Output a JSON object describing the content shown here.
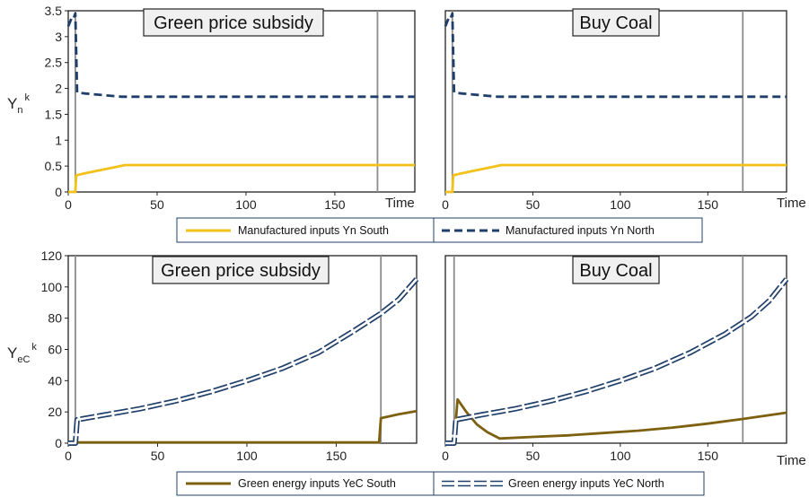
{
  "colors": {
    "south_manufactured": "#f2c21b",
    "north_manufactured": "#1f3f6a",
    "south_energy": "#7d6010",
    "north_energy": "#1f3f6a",
    "policy_line": "#8c8c8c",
    "legend_border": "#1f3f6a"
  },
  "top_row": {
    "y_label_main": "Y",
    "y_label_sub": "n",
    "y_label_sup": "k",
    "legend": {
      "south": "Manufactured inputs Yn South",
      "north": "Manufactured inputs Yn North"
    }
  },
  "bottom_row": {
    "y_label_main": "Y",
    "y_label_sub": "eC",
    "y_label_sup": "k",
    "legend": {
      "south": "Green energy inputs YeC South",
      "north": "Green energy inputs YeC North"
    }
  },
  "chart_data": [
    {
      "type": "line",
      "title": "Green price subsidy",
      "xlabel": "Time",
      "ylabel": "Yn k",
      "xlim": [
        0,
        195
      ],
      "ylim": [
        0,
        3.5
      ],
      "x_ticks": [
        "0",
        "50",
        "100",
        "150"
      ],
      "x_tick_values": [
        0,
        50,
        100,
        150
      ],
      "y_ticks": [
        "0",
        "0.5",
        "1",
        "1.5",
        "2",
        "2.5",
        "3",
        "3.5"
      ],
      "y_tick_values": [
        0,
        0.5,
        1,
        1.5,
        2,
        2.5,
        3,
        3.5
      ],
      "show_y_ticks": true,
      "vlines": [
        4,
        174
      ],
      "series": [
        {
          "name": "Manufactured inputs Yn South",
          "style": "solid",
          "color_key": "south_manufactured",
          "points": [
            [
              0,
              0
            ],
            [
              4,
              0
            ],
            [
              4.5,
              0.32
            ],
            [
              8,
              0.35
            ],
            [
              15,
              0.4
            ],
            [
              25,
              0.47
            ],
            [
              32,
              0.52
            ],
            [
              195,
              0.52
            ]
          ]
        },
        {
          "name": "Manufactured inputs Yn North",
          "style": "dashed",
          "color_key": "north_manufactured",
          "points": [
            [
              0,
              3.2
            ],
            [
              2,
              3.37
            ],
            [
              3,
              3.35
            ],
            [
              4,
              3.45
            ],
            [
              5,
              1.92
            ],
            [
              10,
              1.9
            ],
            [
              20,
              1.87
            ],
            [
              30,
              1.84
            ],
            [
              195,
              1.84
            ]
          ]
        }
      ]
    },
    {
      "type": "line",
      "title": "Buy Coal",
      "xlabel": "Time",
      "ylabel": "",
      "xlim": [
        0,
        195
      ],
      "ylim": [
        0,
        3.5
      ],
      "x_ticks": [
        "0",
        "50",
        "100",
        "150"
      ],
      "x_tick_values": [
        0,
        50,
        100,
        150
      ],
      "y_ticks": [],
      "y_tick_values": [],
      "show_y_ticks": false,
      "vlines": [
        4,
        170
      ],
      "series": [
        {
          "name": "Manufactured inputs Yn South",
          "style": "solid",
          "color_key": "south_manufactured",
          "points": [
            [
              0,
              0
            ],
            [
              4,
              0
            ],
            [
              4.5,
              0.32
            ],
            [
              8,
              0.35
            ],
            [
              15,
              0.4
            ],
            [
              25,
              0.47
            ],
            [
              32,
              0.52
            ],
            [
              195,
              0.52
            ]
          ]
        },
        {
          "name": "Manufactured inputs Yn North",
          "style": "dashed",
          "color_key": "north_manufactured",
          "points": [
            [
              0,
              3.2
            ],
            [
              2,
              3.37
            ],
            [
              3,
              3.35
            ],
            [
              4,
              3.45
            ],
            [
              5,
              1.92
            ],
            [
              10,
              1.9
            ],
            [
              20,
              1.87
            ],
            [
              30,
              1.84
            ],
            [
              195,
              1.84
            ]
          ]
        }
      ]
    },
    {
      "type": "line",
      "title": "Green price subsidy",
      "xlabel": "",
      "ylabel": "YeC k",
      "xlim": [
        0,
        195
      ],
      "ylim": [
        0,
        120
      ],
      "x_ticks": [
        "0",
        "50",
        "100",
        "150"
      ],
      "x_tick_values": [
        0,
        50,
        100,
        150
      ],
      "y_ticks": [
        "0",
        "20",
        "40",
        "60",
        "80",
        "100",
        "120"
      ],
      "y_tick_values": [
        0,
        20,
        40,
        60,
        80,
        100,
        120
      ],
      "show_y_ticks": true,
      "vlines": [
        4,
        175
      ],
      "series": [
        {
          "name": "Green energy inputs YeC South",
          "style": "solid",
          "color_key": "south_energy",
          "points": [
            [
              0,
              0.5
            ],
            [
              174,
              0.5
            ],
            [
              175,
              16
            ],
            [
              185,
              18.5
            ],
            [
              195,
              20.5
            ]
          ]
        },
        {
          "name": "Green energy inputs YeC North",
          "style": "double",
          "color_key": "north_energy",
          "points": [
            [
              0,
              0
            ],
            [
              4,
              0
            ],
            [
              5,
              15
            ],
            [
              20,
              18
            ],
            [
              40,
              22
            ],
            [
              60,
              27
            ],
            [
              80,
              33
            ],
            [
              100,
              40
            ],
            [
              120,
              48
            ],
            [
              140,
              58
            ],
            [
              160,
              72
            ],
            [
              175,
              83
            ],
            [
              185,
              92
            ],
            [
              195,
              105
            ]
          ]
        }
      ]
    },
    {
      "type": "line",
      "title": "Buy Coal",
      "xlabel": "Time",
      "ylabel": "",
      "xlim": [
        0,
        195
      ],
      "ylim": [
        0,
        120
      ],
      "x_ticks": [
        "0",
        "50",
        "100",
        "150"
      ],
      "x_tick_values": [
        0,
        50,
        100,
        150
      ],
      "y_ticks": [],
      "y_tick_values": [],
      "show_y_ticks": false,
      "vlines": [
        5,
        170
      ],
      "series": [
        {
          "name": "Green energy inputs YeC South",
          "style": "solid",
          "color_key": "south_energy",
          "points": [
            [
              0,
              0
            ],
            [
              5,
              0
            ],
            [
              7,
              28
            ],
            [
              12,
              20
            ],
            [
              18,
              12
            ],
            [
              24,
              7
            ],
            [
              31,
              3
            ],
            [
              50,
              4
            ],
            [
              70,
              5
            ],
            [
              90,
              6.5
            ],
            [
              110,
              8
            ],
            [
              130,
              10
            ],
            [
              150,
              12.5
            ],
            [
              170,
              15.5
            ],
            [
              195,
              19.5
            ]
          ]
        },
        {
          "name": "Green energy inputs YeC North",
          "style": "double",
          "color_key": "north_energy",
          "points": [
            [
              0,
              0
            ],
            [
              5,
              0
            ],
            [
              6,
              15
            ],
            [
              20,
              18
            ],
            [
              40,
              22
            ],
            [
              60,
              27
            ],
            [
              80,
              33
            ],
            [
              100,
              40
            ],
            [
              120,
              48
            ],
            [
              140,
              58
            ],
            [
              160,
              70
            ],
            [
              175,
              81
            ],
            [
              185,
              91
            ],
            [
              195,
              105
            ]
          ]
        }
      ]
    }
  ]
}
